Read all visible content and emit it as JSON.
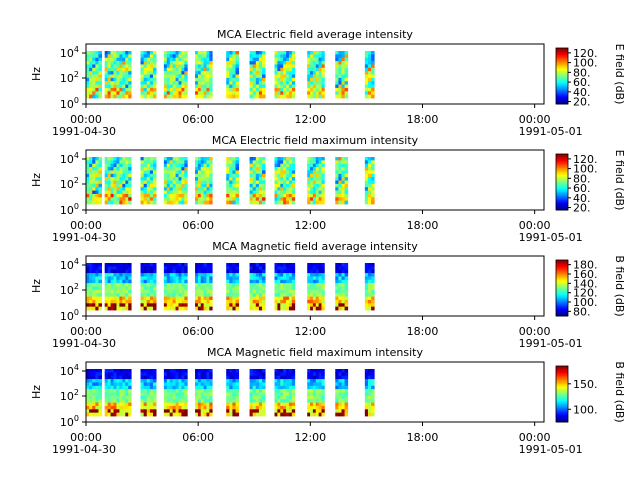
{
  "figure": {
    "background": "#ffffff"
  },
  "chart_data": [
    {
      "type": "heatmap",
      "title": "MCA  Electric field average intensity",
      "ylabel": "Hz",
      "ytick_labels": [
        "10^0",
        "10^2",
        "10^4"
      ],
      "yscale": "log",
      "ylim": [
        1,
        30000
      ],
      "xlim": [
        "1991-04-30 00:00",
        "1991-05-01 00:30"
      ],
      "xtick_labels": [
        "00:00",
        "06:00",
        "12:00",
        "18:00",
        "00:00"
      ],
      "xtick_hours": [
        0,
        6,
        12,
        18,
        24
      ],
      "date_labels": [
        "1991-04-30",
        "1991-05-01"
      ],
      "data_time_ranges": [
        [
          "00:00",
          "00:50"
        ],
        [
          "01:00",
          "02:25"
        ],
        [
          "02:55",
          "03:45"
        ],
        [
          "04:10",
          "05:25"
        ],
        [
          "05:50",
          "06:45"
        ],
        [
          "07:30",
          "08:10"
        ],
        [
          "08:45",
          "09:35"
        ],
        [
          "10:05",
          "11:10"
        ],
        [
          "11:50",
          "12:45"
        ],
        [
          "13:20",
          "14:00"
        ],
        [
          "14:55",
          "15:25"
        ]
      ],
      "colorbar": {
        "label": "E field (dB)",
        "ticks": [
          "20.",
          "40.",
          "60.",
          "80.",
          "100.",
          "120."
        ],
        "min": 15,
        "max": 130
      },
      "pattern": "electric"
    },
    {
      "type": "heatmap",
      "title": "MCA  Electric field maximum intensity",
      "ylabel": "Hz",
      "ytick_labels": [
        "10^0",
        "10^2",
        "10^4"
      ],
      "yscale": "log",
      "ylim": [
        1,
        30000
      ],
      "xlim": [
        "1991-04-30 00:00",
        "1991-05-01 00:30"
      ],
      "xtick_labels": [
        "00:00",
        "06:00",
        "12:00",
        "18:00",
        "00:00"
      ],
      "xtick_hours": [
        0,
        6,
        12,
        18,
        24
      ],
      "date_labels": [
        "1991-04-30",
        "1991-05-01"
      ],
      "data_time_ranges": [
        [
          "00:00",
          "00:50"
        ],
        [
          "01:00",
          "02:25"
        ],
        [
          "02:55",
          "03:45"
        ],
        [
          "04:10",
          "05:25"
        ],
        [
          "05:50",
          "06:45"
        ],
        [
          "07:30",
          "08:10"
        ],
        [
          "08:45",
          "09:35"
        ],
        [
          "10:05",
          "11:10"
        ],
        [
          "11:50",
          "12:45"
        ],
        [
          "13:20",
          "14:00"
        ],
        [
          "14:55",
          "15:25"
        ]
      ],
      "colorbar": {
        "label": "E field (dB)",
        "ticks": [
          "20.",
          "40.",
          "60.",
          "80.",
          "100.",
          "120."
        ],
        "min": 15,
        "max": 130
      },
      "pattern": "electric"
    },
    {
      "type": "heatmap",
      "title": "MCA  Magnetic field average intensity",
      "ylabel": "Hz",
      "ytick_labels": [
        "10^0",
        "10^2",
        "10^4"
      ],
      "yscale": "log",
      "ylim": [
        1,
        30000
      ],
      "xlim": [
        "1991-04-30 00:00",
        "1991-05-01 00:30"
      ],
      "xtick_labels": [
        "00:00",
        "06:00",
        "12:00",
        "18:00",
        "00:00"
      ],
      "xtick_hours": [
        0,
        6,
        12,
        18,
        24
      ],
      "date_labels": [
        "1991-04-30",
        "1991-05-01"
      ],
      "data_time_ranges": [
        [
          "00:00",
          "00:50"
        ],
        [
          "01:00",
          "02:25"
        ],
        [
          "02:55",
          "03:45"
        ],
        [
          "04:10",
          "05:25"
        ],
        [
          "05:50",
          "06:45"
        ],
        [
          "07:30",
          "08:10"
        ],
        [
          "08:45",
          "09:35"
        ],
        [
          "10:05",
          "11:10"
        ],
        [
          "11:50",
          "12:45"
        ],
        [
          "13:20",
          "14:00"
        ],
        [
          "14:55",
          "15:25"
        ]
      ],
      "colorbar": {
        "label": "B field (dB)",
        "ticks": [
          "80.",
          "100.",
          "120.",
          "140.",
          "160.",
          "180."
        ],
        "min": 70,
        "max": 190
      },
      "pattern": "magnetic"
    },
    {
      "type": "heatmap",
      "title": "MCA  Magnetic field maximum intensity",
      "ylabel": "Hz",
      "ytick_labels": [
        "10^0",
        "10^2",
        "10^4"
      ],
      "yscale": "log",
      "ylim": [
        1,
        30000
      ],
      "xlim": [
        "1991-04-30 00:00",
        "1991-05-01 00:30"
      ],
      "xtick_labels": [
        "00:00",
        "06:00",
        "12:00",
        "18:00",
        "00:00"
      ],
      "xtick_hours": [
        0,
        6,
        12,
        18,
        24
      ],
      "date_labels": [
        "1991-04-30",
        "1991-05-01"
      ],
      "data_time_ranges": [
        [
          "00:00",
          "00:50"
        ],
        [
          "01:00",
          "02:25"
        ],
        [
          "02:55",
          "03:45"
        ],
        [
          "04:10",
          "05:25"
        ],
        [
          "05:50",
          "06:45"
        ],
        [
          "07:30",
          "08:10"
        ],
        [
          "08:45",
          "09:35"
        ],
        [
          "10:05",
          "11:10"
        ],
        [
          "11:50",
          "12:45"
        ],
        [
          "13:20",
          "14:00"
        ],
        [
          "14:55",
          "15:25"
        ]
      ],
      "colorbar": {
        "label": "B field (dB)",
        "ticks": [
          "100.",
          "150."
        ],
        "min": 75,
        "max": 185
      },
      "pattern": "magnetic"
    }
  ]
}
